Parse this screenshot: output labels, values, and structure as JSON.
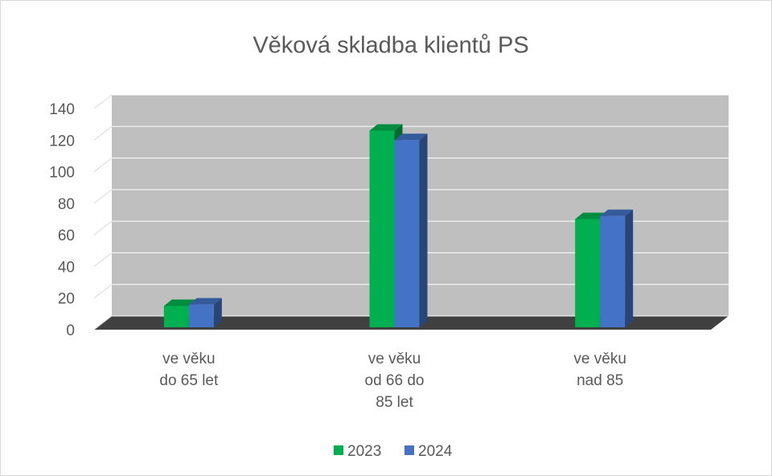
{
  "chart_data": {
    "type": "bar3d",
    "title": "Věková skladba klientů PS",
    "categories": [
      "ve věku do 65 let",
      "ve věku od 66 do 85 let",
      "ve věku nad 85"
    ],
    "series": [
      {
        "name": "2023",
        "color": "#00b050",
        "values": [
          15,
          126,
          70
        ]
      },
      {
        "name": "2024",
        "color": "#4472c4",
        "values": [
          16,
          120,
          72
        ]
      }
    ],
    "ylim": [
      0,
      140
    ],
    "yticks": [
      0,
      20,
      40,
      60,
      80,
      100,
      120,
      140
    ],
    "grid": true,
    "legend": "bottom"
  }
}
